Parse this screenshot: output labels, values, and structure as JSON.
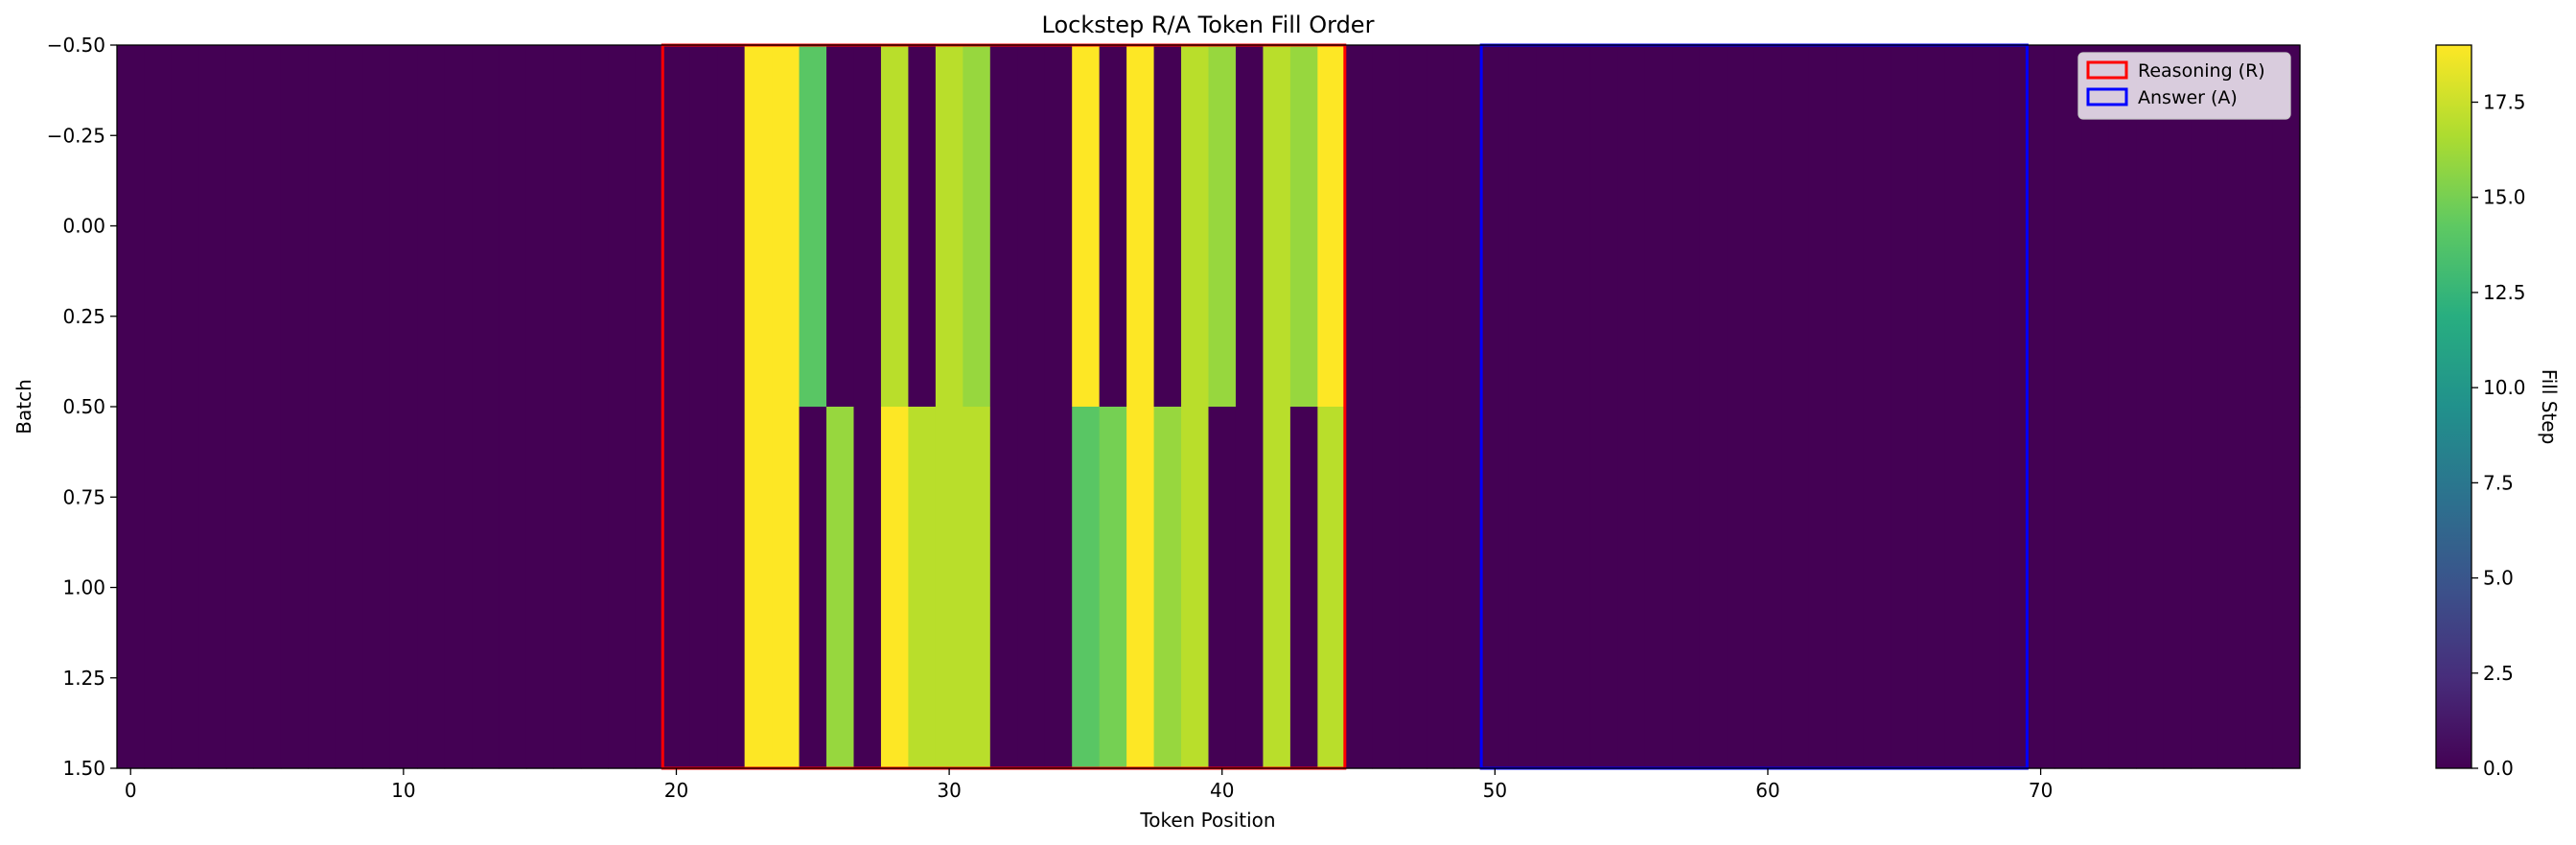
{
  "chart_data": {
    "type": "heatmap",
    "title": "Lockstep R/A Token Fill Order",
    "xlabel": "Token Position",
    "ylabel": "Batch",
    "colorbar_label": "Fill Step",
    "colormap": "viridis",
    "vmin": 0,
    "vmax": 19,
    "n_positions": 80,
    "xlim": [
      -0.5,
      79.5
    ],
    "ylim": [
      1.5,
      -0.5
    ],
    "x_ticks": [
      0,
      10,
      20,
      30,
      40,
      50,
      60,
      70
    ],
    "x_tick_labels": [
      "0",
      "10",
      "20",
      "30",
      "40",
      "50",
      "60",
      "70"
    ],
    "y_ticks": [
      -0.5,
      -0.25,
      0.0,
      0.25,
      0.5,
      0.75,
      1.0,
      1.25,
      1.5
    ],
    "y_tick_labels": [
      "−0.50",
      "−0.25",
      "0.00",
      "0.25",
      "0.50",
      "0.75",
      "1.00",
      "1.25",
      "1.50"
    ],
    "colorbar_ticks": [
      0,
      2.5,
      5,
      7.5,
      10,
      12.5,
      15,
      17.5
    ],
    "colorbar_tick_labels": [
      "0.0",
      "2.5",
      "5.0",
      "7.5",
      "10.0",
      "12.5",
      "15.0",
      "17.5"
    ],
    "rows": [
      {
        "batch": 0,
        "cells": {
          "23": 19,
          "24": 19,
          "25": 14,
          "28": 17,
          "30": 17,
          "31": 16,
          "35": 19,
          "37": 19,
          "39": 17,
          "40": 16,
          "42": 17,
          "43": 16,
          "44": 19
        }
      },
      {
        "batch": 1,
        "cells": {
          "23": 19,
          "24": 19,
          "26": 16,
          "28": 19,
          "29": 17,
          "30": 17,
          "31": 17,
          "35": 14,
          "36": 15,
          "37": 19,
          "38": 16,
          "39": 17,
          "42": 17,
          "44": 17
        }
      }
    ],
    "regions": [
      {
        "label": "Reasoning (R)",
        "x_start": 19.5,
        "x_end": 44.5,
        "color": "#ff0000"
      },
      {
        "label": "Answer (A)",
        "x_start": 49.5,
        "x_end": 69.5,
        "color": "#0000ff"
      }
    ],
    "legend_position": "top-right"
  }
}
